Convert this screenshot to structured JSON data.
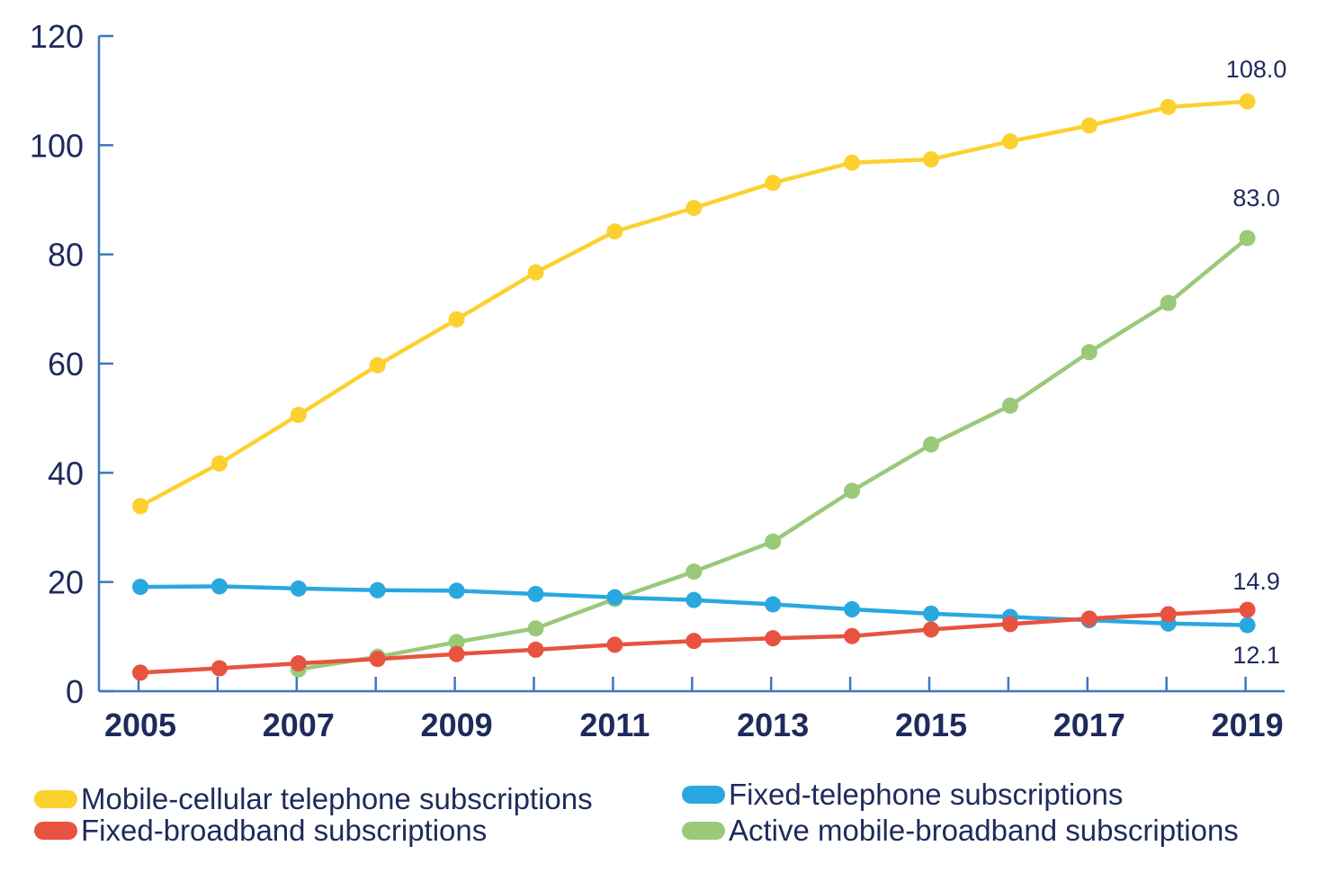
{
  "chart_data": {
    "type": "line",
    "title": "",
    "xlabel": "",
    "ylabel": "",
    "x": [
      2005,
      2006,
      2007,
      2008,
      2009,
      2010,
      2011,
      2012,
      2013,
      2014,
      2015,
      2016,
      2017,
      2018,
      2019
    ],
    "x_tick_labels": [
      "2005",
      "2007",
      "2009",
      "2011",
      "2013",
      "2015",
      "2017",
      "2019"
    ],
    "ylim": [
      0,
      120
    ],
    "y_tick_labels": [
      "0",
      "20",
      "40",
      "60",
      "80",
      "100",
      "120"
    ],
    "grid": false,
    "legend_position": "bottom",
    "series": [
      {
        "name": "Mobile-cellular telephone subscriptions",
        "color": "#fcd12f",
        "values": [
          33.9,
          41.7,
          50.6,
          59.7,
          68.1,
          76.7,
          84.2,
          88.5,
          93.1,
          96.8,
          97.4,
          100.7,
          103.6,
          107.0,
          108.0
        ],
        "end_label": "108.0"
      },
      {
        "name": "Fixed-telephone subscriptions",
        "color": "#29a8e0",
        "values": [
          19.1,
          19.2,
          18.8,
          18.5,
          18.4,
          17.8,
          17.2,
          16.7,
          15.9,
          15.0,
          14.2,
          13.6,
          13.0,
          12.4,
          12.1
        ],
        "end_label": "12.1"
      },
      {
        "name": "Fixed-broadband subscriptions",
        "color": "#e8533f",
        "values": [
          3.4,
          4.2,
          5.1,
          5.9,
          6.8,
          7.6,
          8.5,
          9.2,
          9.7,
          10.1,
          11.3,
          12.3,
          13.3,
          14.1,
          14.9
        ],
        "end_label": "14.9"
      },
      {
        "name": "Active mobile-broadband subscriptions",
        "color": "#9ac97a",
        "values": [
          null,
          null,
          4.0,
          6.3,
          9.0,
          11.5,
          16.9,
          21.9,
          27.4,
          36.7,
          45.2,
          52.3,
          62.1,
          71.1,
          83.0
        ],
        "end_label": "83.0"
      }
    ]
  }
}
